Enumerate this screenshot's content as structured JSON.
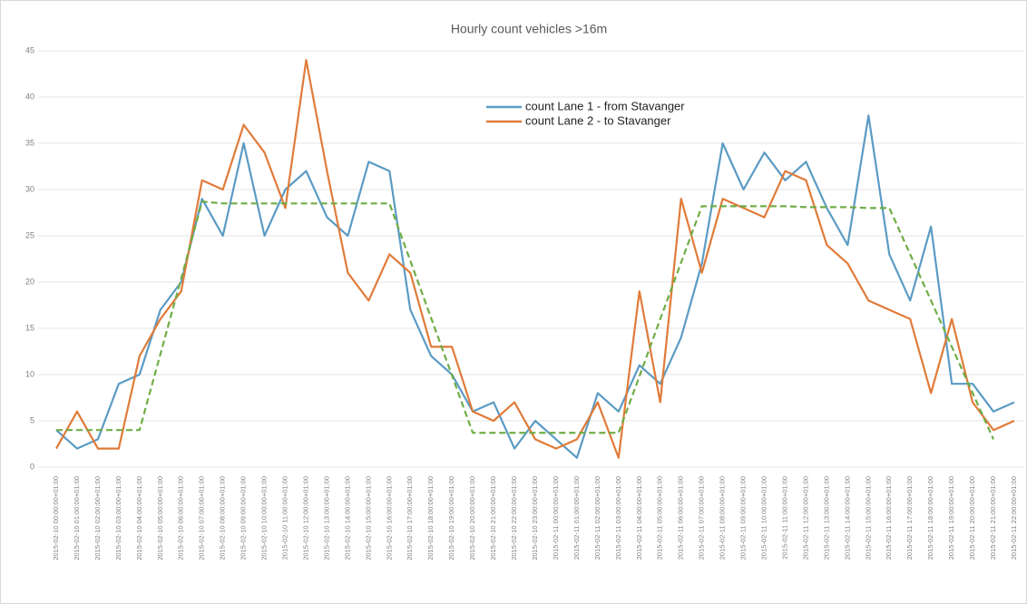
{
  "chart_data": {
    "type": "line",
    "title": "Hourly count vehicles >16m",
    "categories": [
      "2015-02-10 00:00:00+01:00",
      "2015-02-10 01:00:00+01:00",
      "2015-02-10 02:00:00+01:00",
      "2015-02-10 03:00:00+01:00",
      "2015-02-10 04:00:00+01:00",
      "2015-02-10 05:00:00+01:00",
      "2015-02-10 06:00:00+01:00",
      "2015-02-10 07:00:00+01:00",
      "2015-02-10 08:00:00+01:00",
      "2015-02-10 09:00:00+01:00",
      "2015-02-10 10:00:00+01:00",
      "2015-02-10 11:00:00+01:00",
      "2015-02-10 12:00:00+01:00",
      "2015-02-10 13:00:00+01:00",
      "2015-02-10 14:00:00+01:00",
      "2015-02-10 15:00:00+01:00",
      "2015-02-10 16:00:00+01:00",
      "2015-02-10 17:00:00+01:00",
      "2015-02-10 18:00:00+01:00",
      "2015-02-10 19:00:00+01:00",
      "2015-02-10 20:00:00+01:00",
      "2015-02-10 21:00:00+01:00",
      "2015-02-10 22:00:00+01:00",
      "2015-02-10 23:00:00+01:00",
      "2015-02-11 00:00:00+01:00",
      "2015-02-11 01:00:00+01:00",
      "2015-02-11 02:00:00+01:00",
      "2015-02-11 03:00:00+01:00",
      "2015-02-11 04:00:00+01:00",
      "2015-02-11 05:00:00+01:00",
      "2015-02-11 06:00:00+01:00",
      "2015-02-11 07:00:00+01:00",
      "2015-02-11 08:00:00+01:00",
      "2015-02-11 09:00:00+01:00",
      "2015-02-11 10:00:00+01:00",
      "2015-02-11 11:00:00+01:00",
      "2015-02-11 12:00:00+01:00",
      "2015-02-11 13:00:00+01:00",
      "2015-02-11 14:00:00+01:00",
      "2015-02-11 15:00:00+01:00",
      "2015-02-11 16:00:00+01:00",
      "2015-02-11 17:00:00+01:00",
      "2015-02-11 18:00:00+01:00",
      "2015-02-11 19:00:00+01:00",
      "2015-02-11 20:00:00+01:00",
      "2015-02-11 21:00:00+01:00",
      "2015-02-11 22:00:00+01:00"
    ],
    "series": [
      {
        "name": "count Lane 1 - from Stavanger",
        "color": "#5b9bc4",
        "values": [
          4,
          2,
          3,
          9,
          10,
          17,
          20,
          29,
          25,
          35,
          25,
          30,
          32,
          27,
          25,
          33,
          32,
          17,
          12,
          10,
          6,
          7,
          2,
          5,
          3,
          1,
          8,
          6,
          11,
          9,
          14,
          22,
          35,
          30,
          34,
          31,
          33,
          28,
          24,
          38,
          23,
          18,
          26,
          9,
          9,
          6,
          7
        ]
      },
      {
        "name": "count Lane 2 - to Stavanger",
        "color": "#e07b39",
        "values": [
          2,
          6,
          2,
          2,
          12,
          16,
          19,
          31,
          30,
          37,
          34,
          28,
          44,
          32,
          21,
          18,
          23,
          21,
          13,
          13,
          6,
          5,
          7,
          3,
          2,
          3,
          7,
          1,
          19,
          7,
          29,
          21,
          29,
          28,
          27,
          32,
          31,
          24,
          22,
          18,
          17,
          16,
          8,
          16,
          7,
          4,
          5
        ]
      },
      {
        "color": "#70ad47",
        "dashed": true,
        "values": [
          4,
          4,
          4,
          4,
          4,
          12.2,
          20.4,
          28.7,
          28.5,
          28.5,
          28.5,
          28.5,
          28.5,
          28.5,
          28.5,
          28.5,
          28.5,
          22.3,
          16.1,
          9.9,
          3.7,
          3.7,
          3.7,
          3.7,
          3.7,
          3.7,
          3.7,
          3.7,
          9.8,
          16,
          22.1,
          28.2,
          28.2,
          28.2,
          28.2,
          28.2,
          28.1,
          28.1,
          28.1,
          28,
          28,
          23,
          18,
          13,
          8,
          3,
          null
        ]
      }
    ],
    "ylim": [
      0,
      45
    ],
    "yticks": [
      0,
      5,
      10,
      15,
      20,
      25,
      30,
      35,
      40,
      45
    ],
    "grid": true
  }
}
